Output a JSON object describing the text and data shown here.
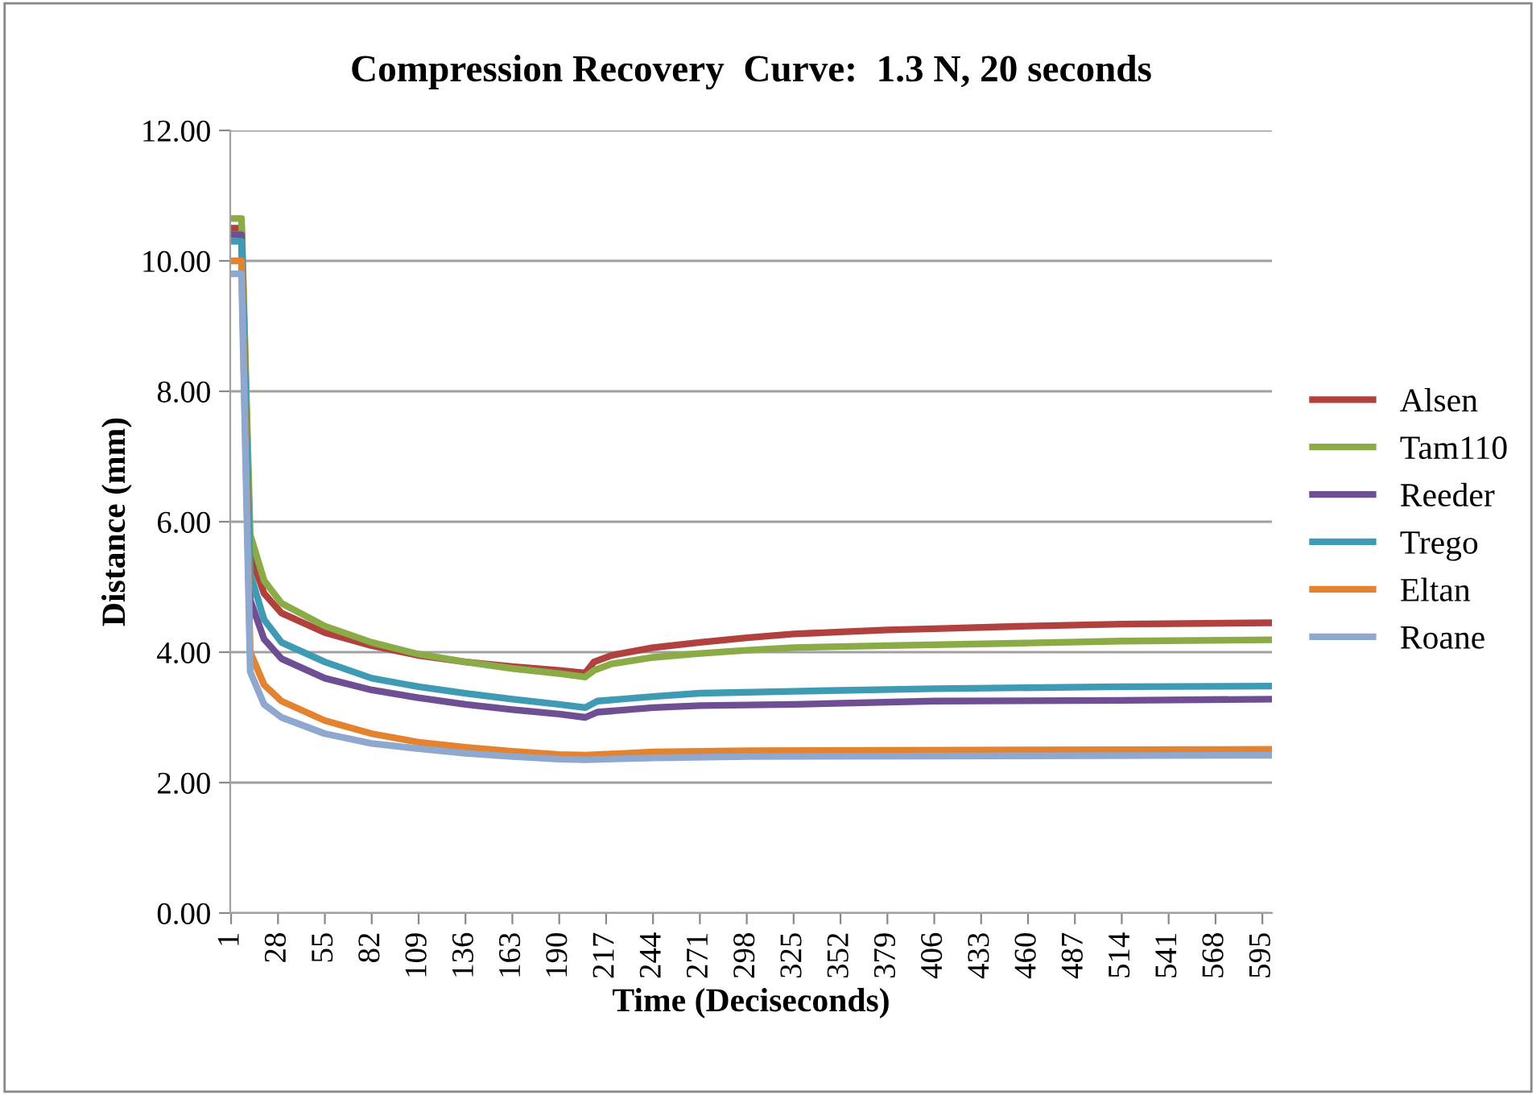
{
  "chart_data": {
    "type": "line",
    "title": "Compression Recovery  Curve:  1.3 N, 20 seconds",
    "xlabel": "Time (Deciseconds)",
    "ylabel": "Distance (mm)",
    "xlim": [
      0.5,
      600.5
    ],
    "xticks": [
      1,
      28,
      55,
      82,
      109,
      136,
      163,
      190,
      217,
      244,
      271,
      298,
      325,
      352,
      379,
      406,
      433,
      460,
      487,
      514,
      541,
      568,
      595
    ],
    "ylim": [
      0,
      12
    ],
    "yticks": [
      {
        "value": 0,
        "label": "0.00"
      },
      {
        "value": 2,
        "label": "2.00"
      },
      {
        "value": 4,
        "label": "4.00"
      },
      {
        "value": 6,
        "label": "6.00"
      },
      {
        "value": 8,
        "label": "8.00"
      },
      {
        "value": 10,
        "label": "10.00"
      },
      {
        "value": 12,
        "label": "12.00"
      }
    ],
    "grid": "y",
    "legend": "right",
    "marker": "none",
    "line_style": "solid",
    "series": [
      {
        "name": "Alsen",
        "color": "#b0413e",
        "x": [
          1,
          7,
          12,
          20,
          30,
          55,
          82,
          109,
          136,
          163,
          190,
          205,
          210,
          220,
          244,
          271,
          298,
          325,
          352,
          379,
          406,
          460,
          514,
          600
        ],
        "values": [
          10.5,
          10.5,
          5.5,
          4.9,
          4.6,
          4.3,
          4.1,
          3.95,
          3.85,
          3.78,
          3.72,
          3.68,
          3.85,
          3.95,
          4.07,
          4.15,
          4.22,
          4.28,
          4.31,
          4.34,
          4.36,
          4.4,
          4.43,
          4.45
        ]
      },
      {
        "name": "Tam110",
        "color": "#8bab47",
        "x": [
          1,
          7,
          12,
          20,
          30,
          55,
          82,
          109,
          136,
          163,
          190,
          205,
          210,
          220,
          244,
          271,
          298,
          325,
          379,
          460,
          514,
          600
        ],
        "values": [
          10.65,
          10.65,
          5.8,
          5.1,
          4.75,
          4.4,
          4.15,
          3.97,
          3.85,
          3.75,
          3.67,
          3.62,
          3.72,
          3.82,
          3.92,
          3.98,
          4.03,
          4.07,
          4.1,
          4.14,
          4.17,
          4.19
        ]
      },
      {
        "name": "Reeder",
        "color": "#6e4f93",
        "x": [
          1,
          7,
          12,
          20,
          30,
          55,
          82,
          109,
          136,
          163,
          190,
          205,
          212,
          244,
          271,
          325,
          406,
          514,
          600
        ],
        "values": [
          10.4,
          10.4,
          4.8,
          4.2,
          3.9,
          3.6,
          3.42,
          3.3,
          3.2,
          3.12,
          3.05,
          3.0,
          3.08,
          3.15,
          3.18,
          3.2,
          3.25,
          3.26,
          3.28
        ]
      },
      {
        "name": "Trego",
        "color": "#3e9bb3",
        "x": [
          1,
          7,
          12,
          20,
          30,
          55,
          82,
          109,
          136,
          163,
          190,
          205,
          212,
          244,
          271,
          325,
          406,
          514,
          600
        ],
        "values": [
          10.3,
          10.3,
          5.2,
          4.5,
          4.15,
          3.85,
          3.6,
          3.47,
          3.37,
          3.28,
          3.2,
          3.15,
          3.25,
          3.32,
          3.37,
          3.4,
          3.44,
          3.47,
          3.48
        ]
      },
      {
        "name": "Eltan",
        "color": "#e3832f",
        "x": [
          1,
          7,
          12,
          20,
          30,
          55,
          82,
          109,
          136,
          163,
          190,
          205,
          244,
          300,
          600
        ],
        "values": [
          10.0,
          10.0,
          4.0,
          3.5,
          3.25,
          2.95,
          2.75,
          2.62,
          2.54,
          2.48,
          2.43,
          2.42,
          2.47,
          2.49,
          2.51
        ]
      },
      {
        "name": "Roane",
        "color": "#8fa8cf",
        "x": [
          1,
          7,
          12,
          20,
          30,
          55,
          82,
          109,
          136,
          163,
          190,
          205,
          244,
          300,
          600
        ],
        "values": [
          9.8,
          9.8,
          3.7,
          3.2,
          3.0,
          2.75,
          2.6,
          2.52,
          2.45,
          2.4,
          2.36,
          2.35,
          2.38,
          2.4,
          2.42
        ]
      }
    ]
  }
}
